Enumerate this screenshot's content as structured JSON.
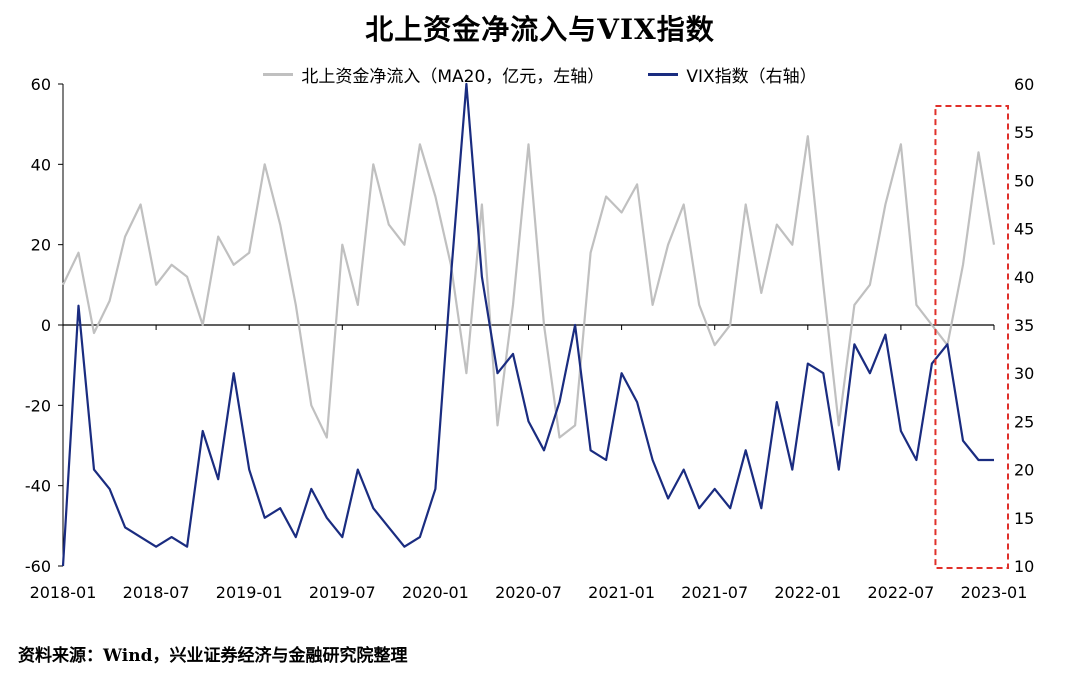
{
  "title": "北上资金净流入与VIX指数",
  "source": "资料来源：Wind，兴业证券经济与金融研究院整理",
  "chart_data": {
    "type": "line",
    "title": "北上资金净流入与VIX指数",
    "x_ticks": [
      "2018-01",
      "2018-07",
      "2019-01",
      "2019-07",
      "2020-01",
      "2020-07",
      "2021-01",
      "2021-07",
      "2022-01",
      "2022-07",
      "2023-01"
    ],
    "x_range": [
      "2018-01",
      "2023-01"
    ],
    "y_left": {
      "ticks": [
        "60",
        "40",
        "20",
        "0",
        "-20",
        "-40",
        "-60"
      ],
      "ylim": [
        -60,
        60
      ]
    },
    "y_right": {
      "ticks": [
        "60",
        "55",
        "50",
        "45",
        "40",
        "35",
        "30",
        "25",
        "20",
        "15",
        "10"
      ],
      "ylim": [
        10,
        60
      ]
    },
    "grid": false,
    "legend_position": "top",
    "highlight_box": {
      "from": "2022-10",
      "to": "2023-01",
      "color": "#e0302a",
      "style": "dashed"
    },
    "series": [
      {
        "name": "北上资金净流入（MA20，亿元，左轴）",
        "axis": "left",
        "color": "#c0c0c0",
        "points": [
          [
            "2018-01",
            10
          ],
          [
            "2018-02",
            18
          ],
          [
            "2018-03",
            -2
          ],
          [
            "2018-04",
            6
          ],
          [
            "2018-05",
            22
          ],
          [
            "2018-06",
            30
          ],
          [
            "2018-07",
            10
          ],
          [
            "2018-08",
            15
          ],
          [
            "2018-09",
            12
          ],
          [
            "2018-10",
            0
          ],
          [
            "2018-11",
            22
          ],
          [
            "2018-12",
            15
          ],
          [
            "2019-01",
            18
          ],
          [
            "2019-02",
            40
          ],
          [
            "2019-03",
            25
          ],
          [
            "2019-04",
            5
          ],
          [
            "2019-05",
            -20
          ],
          [
            "2019-06",
            -28
          ],
          [
            "2019-07",
            20
          ],
          [
            "2019-08",
            5
          ],
          [
            "2019-09",
            40
          ],
          [
            "2019-10",
            25
          ],
          [
            "2019-11",
            20
          ],
          [
            "2019-12",
            45
          ],
          [
            "2020-01",
            32
          ],
          [
            "2020-02",
            15
          ],
          [
            "2020-03",
            -12
          ],
          [
            "2020-04",
            30
          ],
          [
            "2020-05",
            -25
          ],
          [
            "2020-06",
            5
          ],
          [
            "2020-07",
            45
          ],
          [
            "2020-08",
            0
          ],
          [
            "2020-09",
            -28
          ],
          [
            "2020-10",
            -25
          ],
          [
            "2020-11",
            18
          ],
          [
            "2020-12",
            32
          ],
          [
            "2021-01",
            28
          ],
          [
            "2021-02",
            35
          ],
          [
            "2021-03",
            5
          ],
          [
            "2021-04",
            20
          ],
          [
            "2021-05",
            30
          ],
          [
            "2021-06",
            5
          ],
          [
            "2021-07",
            -5
          ],
          [
            "2021-08",
            0
          ],
          [
            "2021-09",
            30
          ],
          [
            "2021-10",
            8
          ],
          [
            "2021-11",
            25
          ],
          [
            "2021-12",
            20
          ],
          [
            "2022-01",
            47
          ],
          [
            "2022-02",
            10
          ],
          [
            "2022-03",
            -25
          ],
          [
            "2022-04",
            5
          ],
          [
            "2022-05",
            10
          ],
          [
            "2022-06",
            30
          ],
          [
            "2022-07",
            45
          ],
          [
            "2022-08",
            5
          ],
          [
            "2022-09",
            0
          ],
          [
            "2022-10",
            -5
          ],
          [
            "2022-11",
            15
          ],
          [
            "2022-12",
            43
          ],
          [
            "2023-01",
            20
          ]
        ]
      },
      {
        "name": "VIX指数（右轴）",
        "axis": "right",
        "color": "#1a2c80",
        "points": [
          [
            "2018-01",
            10
          ],
          [
            "2018-02",
            37
          ],
          [
            "2018-03",
            20
          ],
          [
            "2018-04",
            18
          ],
          [
            "2018-05",
            14
          ],
          [
            "2018-06",
            13
          ],
          [
            "2018-07",
            12
          ],
          [
            "2018-08",
            13
          ],
          [
            "2018-09",
            12
          ],
          [
            "2018-10",
            24
          ],
          [
            "2018-11",
            19
          ],
          [
            "2018-12",
            30
          ],
          [
            "2019-01",
            20
          ],
          [
            "2019-02",
            15
          ],
          [
            "2019-03",
            16
          ],
          [
            "2019-04",
            13
          ],
          [
            "2019-05",
            18
          ],
          [
            "2019-06",
            15
          ],
          [
            "2019-07",
            13
          ],
          [
            "2019-08",
            20
          ],
          [
            "2019-09",
            16
          ],
          [
            "2019-10",
            14
          ],
          [
            "2019-11",
            12
          ],
          [
            "2019-12",
            13
          ],
          [
            "2020-01",
            18
          ],
          [
            "2020-02",
            40
          ],
          [
            "2020-03",
            62
          ],
          [
            "2020-04",
            40
          ],
          [
            "2020-05",
            30
          ],
          [
            "2020-06",
            32
          ],
          [
            "2020-07",
            25
          ],
          [
            "2020-08",
            22
          ],
          [
            "2020-09",
            27
          ],
          [
            "2020-10",
            35
          ],
          [
            "2020-11",
            22
          ],
          [
            "2020-12",
            21
          ],
          [
            "2021-01",
            30
          ],
          [
            "2021-02",
            27
          ],
          [
            "2021-03",
            21
          ],
          [
            "2021-04",
            17
          ],
          [
            "2021-05",
            20
          ],
          [
            "2021-06",
            16
          ],
          [
            "2021-07",
            18
          ],
          [
            "2021-08",
            16
          ],
          [
            "2021-09",
            22
          ],
          [
            "2021-10",
            16
          ],
          [
            "2021-11",
            27
          ],
          [
            "2021-12",
            20
          ],
          [
            "2022-01",
            31
          ],
          [
            "2022-02",
            30
          ],
          [
            "2022-03",
            20
          ],
          [
            "2022-04",
            33
          ],
          [
            "2022-05",
            30
          ],
          [
            "2022-06",
            34
          ],
          [
            "2022-07",
            24
          ],
          [
            "2022-08",
            21
          ],
          [
            "2022-09",
            31
          ],
          [
            "2022-10",
            33
          ],
          [
            "2022-11",
            23
          ],
          [
            "2022-12",
            21
          ],
          [
            "2023-01",
            21
          ]
        ]
      }
    ]
  }
}
